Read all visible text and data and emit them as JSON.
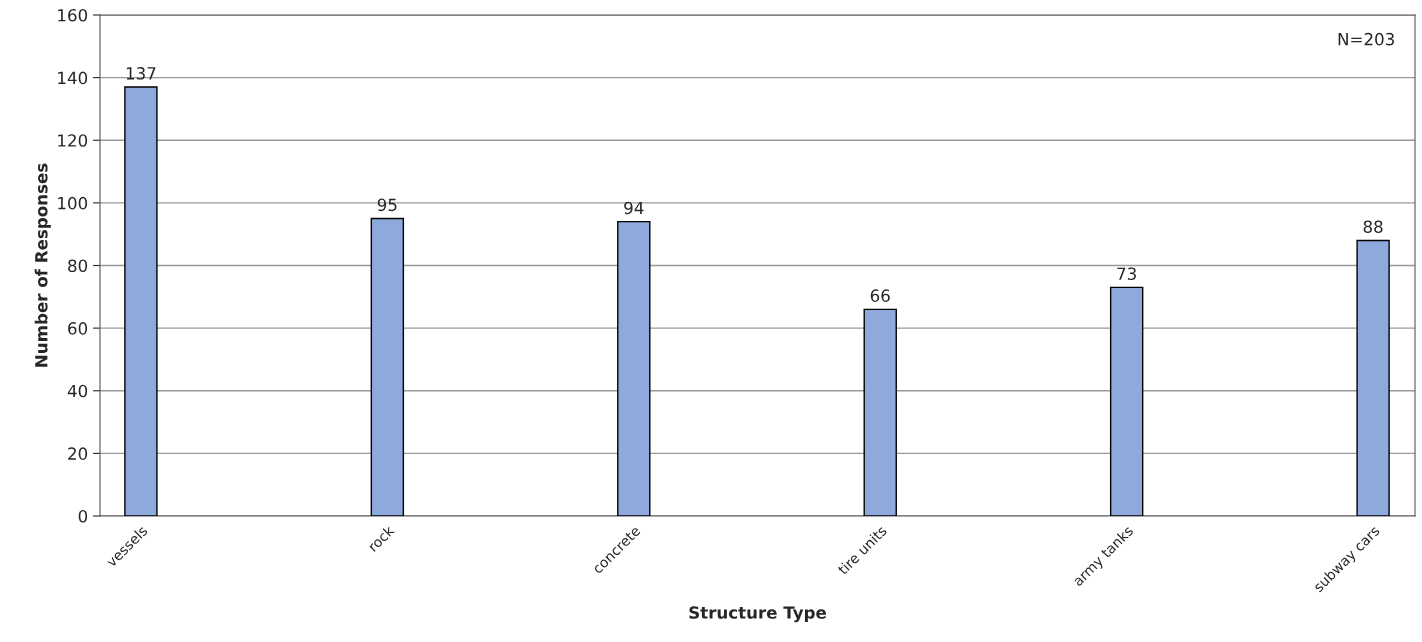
{
  "chart_data": {
    "type": "bar",
    "xlabel": "Structure Type",
    "ylabel": "Number of Responses",
    "categories": [
      "vessels",
      "rock",
      "concrete",
      "tire units",
      "army tanks",
      "subway cars"
    ],
    "values": [
      137,
      95,
      94,
      66,
      73,
      88
    ],
    "color": "#8ea9db",
    "ylim": [
      0,
      160
    ],
    "yticks": [
      0,
      20,
      40,
      60,
      80,
      100,
      120,
      140,
      160
    ],
    "grid": "y",
    "data_labels": true,
    "annotations": [
      "N=203"
    ]
  }
}
